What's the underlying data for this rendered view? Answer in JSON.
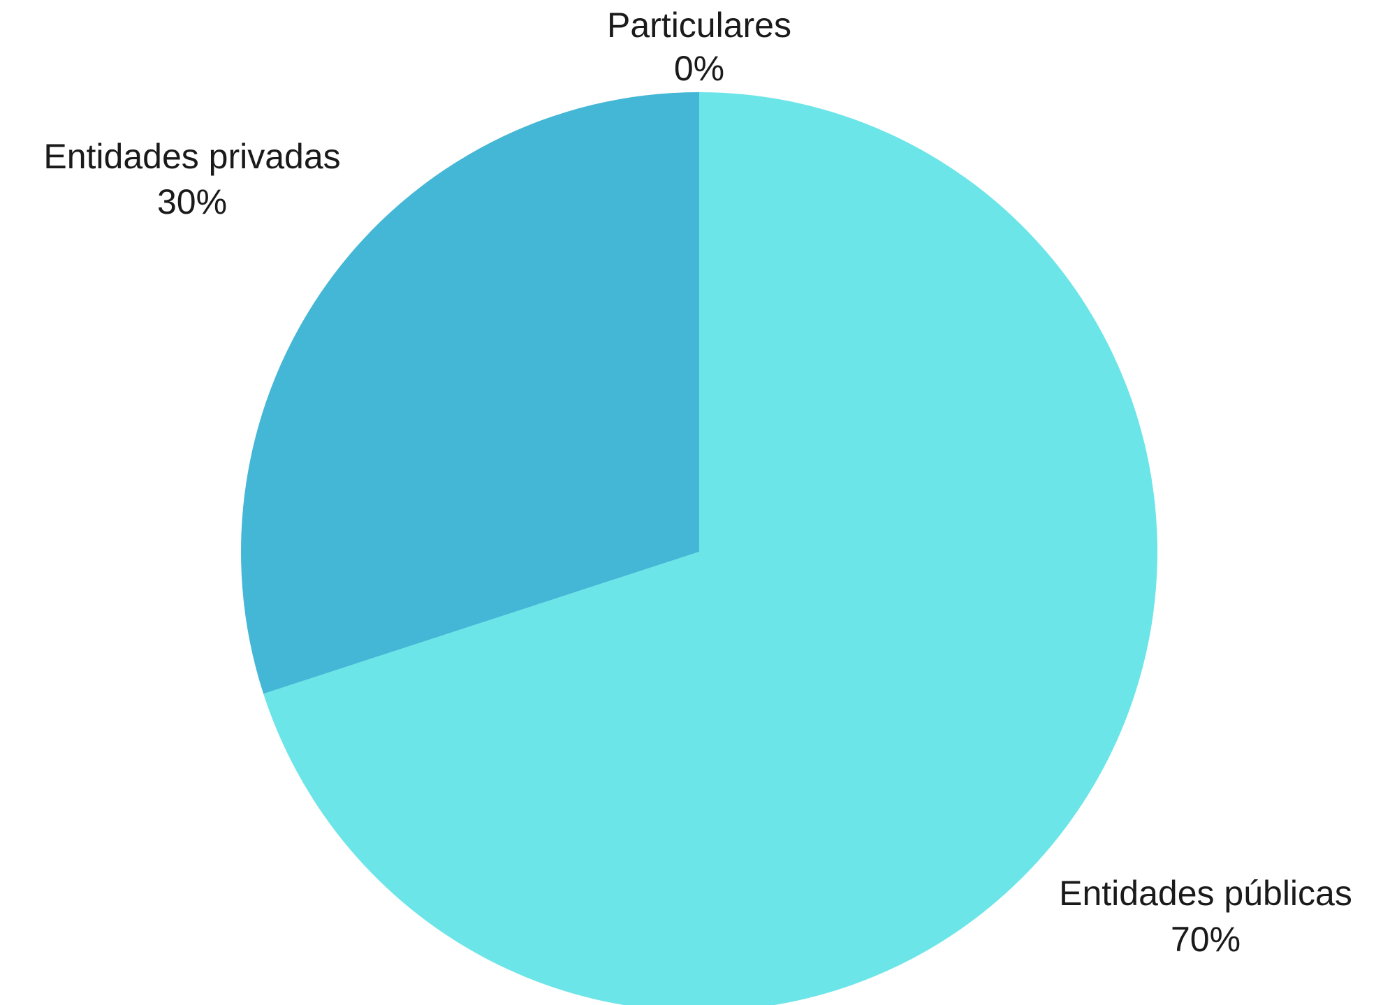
{
  "chart_data": {
    "type": "pie",
    "start_angle": "12 o'clock, clockwise",
    "slices": [
      {
        "label": "Entidades públicas",
        "value": 70,
        "value_label": "70%",
        "color": "#6ce5e8"
      },
      {
        "label": "Entidades privadas",
        "value": 30,
        "value_label": "30%",
        "color": "#43b7d5"
      },
      {
        "label": "Particulares",
        "value": 0,
        "value_label": "0%",
        "color": "#2e8fb0"
      }
    ]
  }
}
